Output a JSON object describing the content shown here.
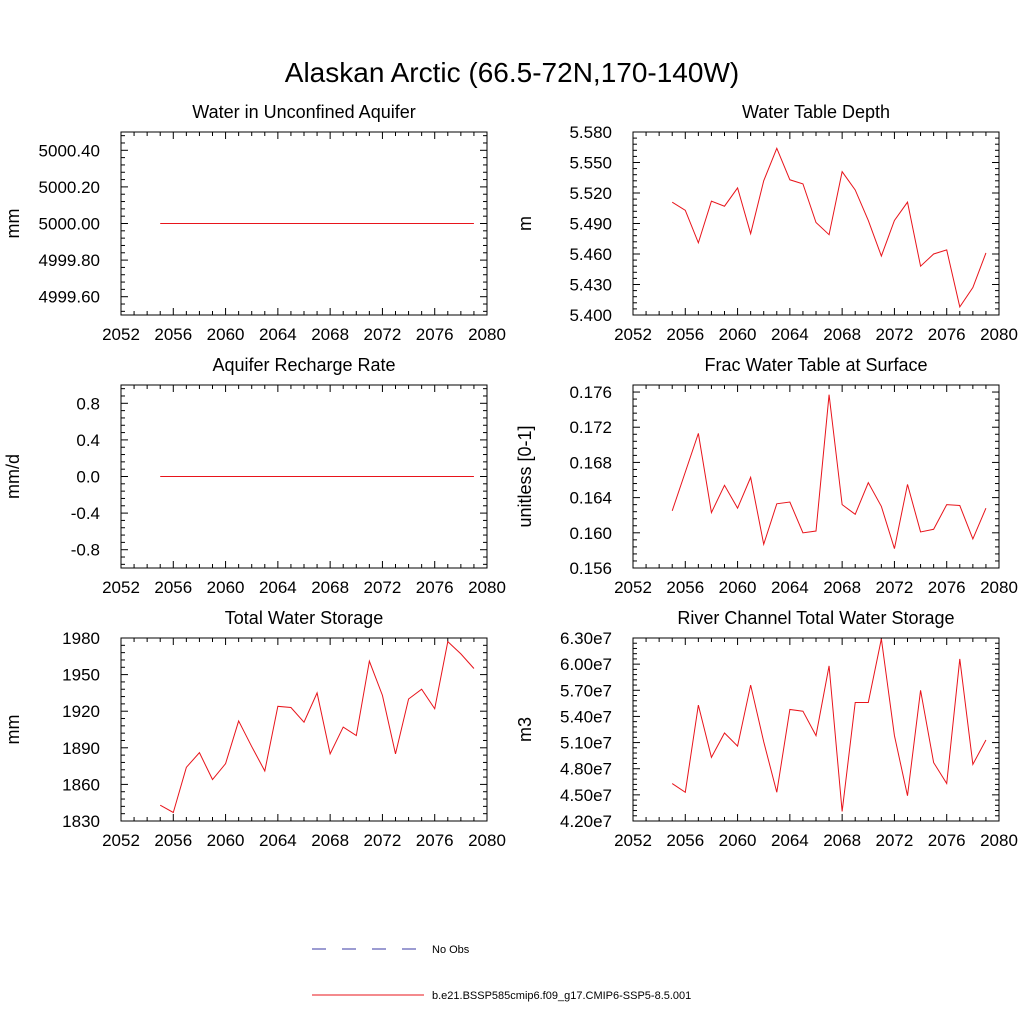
{
  "title": "Alaskan Arctic (66.5-72N,170-140W)",
  "legend": {
    "obs_label": "No Obs",
    "model_label": "b.e21.BSSP585cmip6.f09_g17.CMIP6-SSP5-8.5.001",
    "obs_color": "#3a3aa6",
    "model_color": "#e8141b"
  },
  "chart_data": [
    {
      "type": "line",
      "title": "Water in Unconfined Aquifer",
      "ylabel": "mm",
      "xlim": [
        2052,
        2080
      ],
      "xticks": [
        2052,
        2056,
        2060,
        2064,
        2068,
        2072,
        2076,
        2080
      ],
      "ylim": [
        4999.5,
        5000.5
      ],
      "yticks": [
        4999.6,
        4999.8,
        5000.0,
        5000.2,
        5000.4
      ],
      "ytick_labels": [
        "4999.60",
        "4999.80",
        "5000.00",
        "5000.20",
        "5000.40"
      ],
      "x": [
        2055,
        2056,
        2057,
        2058,
        2059,
        2060,
        2061,
        2062,
        2063,
        2064,
        2065,
        2066,
        2067,
        2068,
        2069,
        2070,
        2071,
        2072,
        2073,
        2074,
        2075,
        2076,
        2077,
        2078,
        2079
      ],
      "values": [
        5000.0,
        5000.0,
        5000.0,
        5000.0,
        5000.0,
        5000.0,
        5000.0,
        5000.0,
        5000.0,
        5000.0,
        5000.0,
        5000.0,
        5000.0,
        5000.0,
        5000.0,
        5000.0,
        5000.0,
        5000.0,
        5000.0,
        5000.0,
        5000.0,
        5000.0,
        5000.0,
        5000.0,
        5000.0
      ]
    },
    {
      "type": "line",
      "title": "Water Table Depth",
      "ylabel": "m",
      "xlim": [
        2052,
        2080
      ],
      "xticks": [
        2052,
        2056,
        2060,
        2064,
        2068,
        2072,
        2076,
        2080
      ],
      "ylim": [
        5.4,
        5.58
      ],
      "yticks": [
        5.4,
        5.43,
        5.46,
        5.49,
        5.52,
        5.55,
        5.58
      ],
      "ytick_labels": [
        "5.400",
        "5.430",
        "5.460",
        "5.490",
        "5.520",
        "5.550",
        "5.580"
      ],
      "x": [
        2055,
        2056,
        2057,
        2058,
        2059,
        2060,
        2061,
        2062,
        2063,
        2064,
        2065,
        2066,
        2067,
        2068,
        2069,
        2070,
        2071,
        2072,
        2073,
        2074,
        2075,
        2076,
        2077,
        2078,
        2079
      ],
      "values": [
        5.511,
        5.503,
        5.471,
        5.512,
        5.507,
        5.525,
        5.48,
        5.532,
        5.564,
        5.533,
        5.529,
        5.491,
        5.479,
        5.541,
        5.523,
        5.493,
        5.458,
        5.493,
        5.511,
        5.448,
        5.46,
        5.464,
        5.408,
        5.427,
        5.461
      ]
    },
    {
      "type": "line",
      "title": "Aquifer Recharge Rate",
      "ylabel": "mm/d",
      "xlim": [
        2052,
        2080
      ],
      "xticks": [
        2052,
        2056,
        2060,
        2064,
        2068,
        2072,
        2076,
        2080
      ],
      "ylim": [
        -1.0,
        1.0
      ],
      "yticks": [
        -0.8,
        -0.4,
        0.0,
        0.4,
        0.8
      ],
      "ytick_labels": [
        "-0.8",
        "-0.4",
        "0.0",
        "0.4",
        "0.8"
      ],
      "x": [
        2055,
        2056,
        2057,
        2058,
        2059,
        2060,
        2061,
        2062,
        2063,
        2064,
        2065,
        2066,
        2067,
        2068,
        2069,
        2070,
        2071,
        2072,
        2073,
        2074,
        2075,
        2076,
        2077,
        2078,
        2079
      ],
      "values": [
        0.0,
        0.0,
        0.0,
        0.0,
        0.0,
        0.0,
        0.0,
        0.0,
        0.0,
        0.0,
        0.0,
        0.0,
        0.0,
        0.0,
        0.0,
        0.0,
        0.0,
        0.0,
        0.0,
        0.0,
        0.0,
        0.0,
        0.0,
        0.0,
        0.0
      ]
    },
    {
      "type": "line",
      "title": "Frac Water Table at Surface",
      "ylabel": "unitless [0-1]",
      "xlim": [
        2052,
        2080
      ],
      "xticks": [
        2052,
        2056,
        2060,
        2064,
        2068,
        2072,
        2076,
        2080
      ],
      "ylim": [
        0.156,
        0.1768
      ],
      "yticks": [
        0.156,
        0.16,
        0.164,
        0.168,
        0.172,
        0.176
      ],
      "ytick_labels": [
        "0.156",
        "0.160",
        "0.164",
        "0.168",
        "0.172",
        "0.176"
      ],
      "x": [
        2055,
        2056,
        2057,
        2058,
        2059,
        2060,
        2061,
        2062,
        2063,
        2064,
        2065,
        2066,
        2067,
        2068,
        2069,
        2070,
        2071,
        2072,
        2073,
        2074,
        2075,
        2076,
        2077,
        2078,
        2079
      ],
      "values": [
        0.1625,
        0.1669,
        0.1713,
        0.1623,
        0.1654,
        0.1628,
        0.1663,
        0.1587,
        0.1633,
        0.1635,
        0.16,
        0.1602,
        0.1757,
        0.1632,
        0.1621,
        0.1657,
        0.163,
        0.1582,
        0.1655,
        0.1601,
        0.1604,
        0.1632,
        0.1631,
        0.1593,
        0.1628
      ]
    },
    {
      "type": "line",
      "title": "Total Water Storage",
      "ylabel": "mm",
      "xlim": [
        2052,
        2080
      ],
      "xticks": [
        2052,
        2056,
        2060,
        2064,
        2068,
        2072,
        2076,
        2080
      ],
      "ylim": [
        1830,
        1980
      ],
      "yticks": [
        1830,
        1860,
        1890,
        1920,
        1950,
        1980
      ],
      "ytick_labels": [
        "1830",
        "1860",
        "1890",
        "1920",
        "1950",
        "1980"
      ],
      "x": [
        2055,
        2056,
        2057,
        2058,
        2059,
        2060,
        2061,
        2062,
        2063,
        2064,
        2065,
        2066,
        2067,
        2068,
        2069,
        2070,
        2071,
        2072,
        2073,
        2074,
        2075,
        2076,
        2077,
        2078,
        2079
      ],
      "values": [
        1843,
        1837,
        1874,
        1886,
        1864,
        1877,
        1912,
        1891,
        1871,
        1924,
        1923,
        1911,
        1935,
        1885,
        1907,
        1900,
        1961,
        1933,
        1885,
        1930,
        1938,
        1922,
        1977,
        1967,
        1955
      ]
    },
    {
      "type": "line",
      "title": "River Channel Total Water Storage",
      "ylabel": "m3",
      "xlim": [
        2052,
        2080
      ],
      "xticks": [
        2052,
        2056,
        2060,
        2064,
        2068,
        2072,
        2076,
        2080
      ],
      "ylim": [
        42000000,
        63000000
      ],
      "yticks": [
        42000000,
        45000000,
        48000000,
        51000000,
        54000000,
        57000000,
        60000000,
        63000000
      ],
      "ytick_labels": [
        "4.20e7",
        "4.50e7",
        "4.80e7",
        "5.10e7",
        "5.40e7",
        "5.70e7",
        "6.00e7",
        "6.30e7"
      ],
      "x": [
        2055,
        2056,
        2057,
        2058,
        2059,
        2060,
        2061,
        2062,
        2063,
        2064,
        2065,
        2066,
        2067,
        2068,
        2069,
        2070,
        2071,
        2072,
        2073,
        2074,
        2075,
        2076,
        2077,
        2078,
        2079
      ],
      "values": [
        46300000,
        45300000,
        55300000,
        49300000,
        52100000,
        50600000,
        57600000,
        51100000,
        45300000,
        54800000,
        54600000,
        51800000,
        59800000,
        43100000,
        55600000,
        55600000,
        62900000,
        51800000,
        44900000,
        57000000,
        48700000,
        46300000,
        60600000,
        48500000,
        51300000
      ]
    }
  ]
}
